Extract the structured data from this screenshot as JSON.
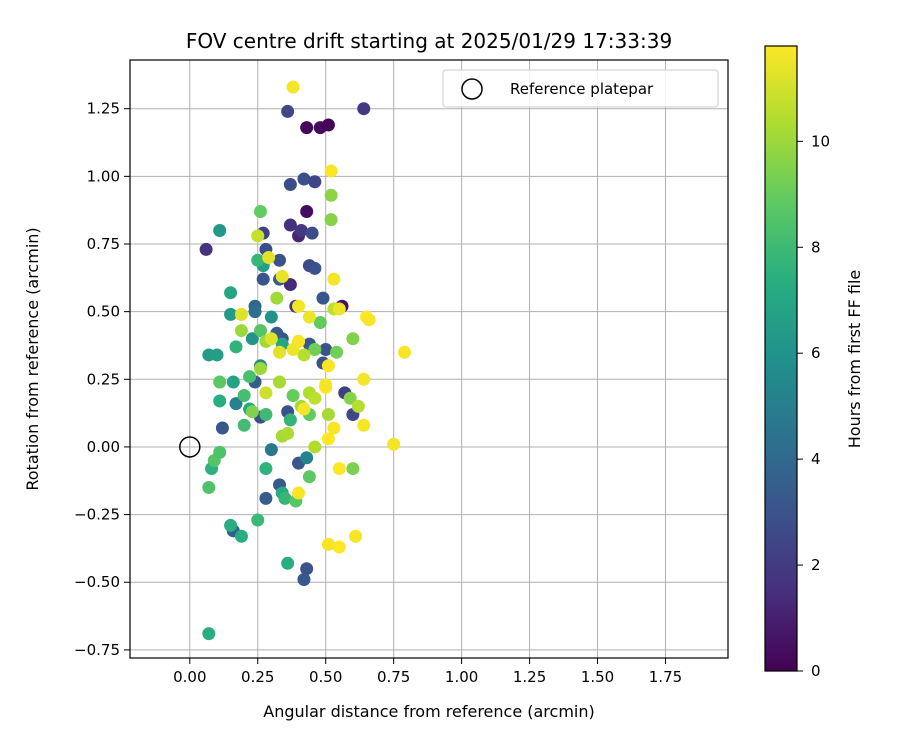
{
  "chart_data": {
    "type": "scatter",
    "title": "FOV centre drift starting at 2025/01/29 17:33:39",
    "xlabel": "Angular distance from reference (arcmin)",
    "ylabel": "Rotation from reference (arcmin)",
    "xlim": [
      -0.22,
      1.98
    ],
    "ylim": [
      -0.78,
      1.43
    ],
    "xticks": [
      0.0,
      0.25,
      0.5,
      0.75,
      1.0,
      1.25,
      1.5,
      1.75
    ],
    "xtick_labels": [
      "0.00",
      "0.25",
      "0.50",
      "0.75",
      "1.00",
      "1.25",
      "1.50",
      "1.75"
    ],
    "yticks": [
      -0.75,
      -0.5,
      -0.25,
      0.0,
      0.25,
      0.5,
      0.75,
      1.0,
      1.25
    ],
    "ytick_labels": [
      "−0.75",
      "−0.50",
      "−0.25",
      "0.00",
      "0.25",
      "0.50",
      "0.75",
      "1.00",
      "1.25"
    ],
    "grid": true,
    "legend": {
      "position": "upper right",
      "entries": [
        {
          "label": "Reference platepar",
          "marker": "open-circle"
        }
      ]
    },
    "reference_point": {
      "x": 0.0,
      "y": 0.0
    },
    "colorbar": {
      "label": "Hours from first FF file",
      "min": 0,
      "max": 11.8,
      "ticks": [
        0,
        2,
        4,
        6,
        8,
        10
      ],
      "tick_labels": [
        "0",
        "2",
        "4",
        "6",
        "8",
        "10"
      ],
      "colormap": "viridis"
    },
    "points": [
      {
        "x": 0.43,
        "y": 1.18,
        "h": 0.2
      },
      {
        "x": 0.48,
        "y": 1.18,
        "h": 0.3
      },
      {
        "x": 0.51,
        "y": 1.19,
        "h": 0.1
      },
      {
        "x": 0.43,
        "y": 0.87,
        "h": 0.4
      },
      {
        "x": 0.56,
        "y": 0.52,
        "h": 0.5
      },
      {
        "x": 0.4,
        "y": 0.78,
        "h": 1.2
      },
      {
        "x": 0.37,
        "y": 0.82,
        "h": 1.5
      },
      {
        "x": 0.37,
        "y": 0.6,
        "h": 1.3
      },
      {
        "x": 0.06,
        "y": 0.73,
        "h": 1.6
      },
      {
        "x": 0.64,
        "y": 1.25,
        "h": 1.9
      },
      {
        "x": 0.36,
        "y": 1.24,
        "h": 2.5
      },
      {
        "x": 0.37,
        "y": 0.97,
        "h": 2.8
      },
      {
        "x": 0.42,
        "y": 0.99,
        "h": 2.9
      },
      {
        "x": 0.46,
        "y": 0.98,
        "h": 2.4
      },
      {
        "x": 0.41,
        "y": 0.8,
        "h": 1.9
      },
      {
        "x": 0.45,
        "y": 0.79,
        "h": 2.7
      },
      {
        "x": 0.27,
        "y": 0.79,
        "h": 2.2
      },
      {
        "x": 0.28,
        "y": 0.73,
        "h": 2.8
      },
      {
        "x": 0.33,
        "y": 0.69,
        "h": 3.0
      },
      {
        "x": 0.44,
        "y": 0.67,
        "h": 2.6
      },
      {
        "x": 0.46,
        "y": 0.66,
        "h": 2.9
      },
      {
        "x": 0.27,
        "y": 0.62,
        "h": 3.1
      },
      {
        "x": 0.33,
        "y": 0.62,
        "h": 3.3
      },
      {
        "x": 0.49,
        "y": 0.55,
        "h": 3.2
      },
      {
        "x": 0.39,
        "y": 0.52,
        "h": 1.8
      },
      {
        "x": 0.34,
        "y": 0.4,
        "h": 3.0
      },
      {
        "x": 0.32,
        "y": 0.42,
        "h": 3.3
      },
      {
        "x": 0.44,
        "y": 0.38,
        "h": 3.2
      },
      {
        "x": 0.49,
        "y": 0.31,
        "h": 2.9
      },
      {
        "x": 0.5,
        "y": 0.36,
        "h": 3.0
      },
      {
        "x": 0.57,
        "y": 0.2,
        "h": 2.1
      },
      {
        "x": 0.6,
        "y": 0.12,
        "h": 2.5
      },
      {
        "x": 0.36,
        "y": 0.13,
        "h": 2.9
      },
      {
        "x": 0.26,
        "y": 0.11,
        "h": 2.8
      },
      {
        "x": 0.24,
        "y": 0.24,
        "h": 3.4
      },
      {
        "x": 0.12,
        "y": 0.07,
        "h": 3.2
      },
      {
        "x": 0.4,
        "y": -0.06,
        "h": 3.2
      },
      {
        "x": 0.33,
        "y": -0.14,
        "h": 3.3
      },
      {
        "x": 0.28,
        "y": -0.19,
        "h": 3.5
      },
      {
        "x": 0.43,
        "y": -0.45,
        "h": 3.0
      },
      {
        "x": 0.42,
        "y": -0.49,
        "h": 3.2
      },
      {
        "x": 0.16,
        "y": -0.31,
        "h": 3.6
      },
      {
        "x": 0.24,
        "y": 0.52,
        "h": 3.9
      },
      {
        "x": 0.24,
        "y": 0.5,
        "h": 4.3
      },
      {
        "x": 0.3,
        "y": -0.01,
        "h": 4.7
      },
      {
        "x": 0.43,
        "y": -0.04,
        "h": 5.2
      },
      {
        "x": 0.17,
        "y": 0.16,
        "h": 5.1
      },
      {
        "x": 0.26,
        "y": 0.3,
        "h": 5.5
      },
      {
        "x": 0.3,
        "y": 0.48,
        "h": 6.0
      },
      {
        "x": 0.23,
        "y": 0.4,
        "h": 6.1
      },
      {
        "x": 0.15,
        "y": 0.49,
        "h": 6.3
      },
      {
        "x": 0.11,
        "y": 0.8,
        "h": 6.2
      },
      {
        "x": 0.27,
        "y": 0.67,
        "h": 6.6
      },
      {
        "x": 0.07,
        "y": 0.34,
        "h": 6.4
      },
      {
        "x": 0.1,
        "y": 0.34,
        "h": 6.6
      },
      {
        "x": 0.16,
        "y": 0.24,
        "h": 6.8
      },
      {
        "x": 0.22,
        "y": 0.14,
        "h": 7.0
      },
      {
        "x": 0.15,
        "y": 0.57,
        "h": 6.9
      },
      {
        "x": 0.34,
        "y": 0.38,
        "h": 7.0
      },
      {
        "x": 0.34,
        "y": -0.17,
        "h": 7.2
      },
      {
        "x": 0.19,
        "y": -0.33,
        "h": 7.3
      },
      {
        "x": 0.15,
        "y": -0.29,
        "h": 7.4
      },
      {
        "x": 0.36,
        "y": -0.43,
        "h": 7.3
      },
      {
        "x": 0.07,
        "y": -0.69,
        "h": 7.3
      },
      {
        "x": 0.08,
        "y": -0.08,
        "h": 7.5
      },
      {
        "x": 0.11,
        "y": 0.17,
        "h": 7.4
      },
      {
        "x": 0.17,
        "y": 0.37,
        "h": 7.6
      },
      {
        "x": 0.25,
        "y": 0.69,
        "h": 7.8
      },
      {
        "x": 0.28,
        "y": -0.08,
        "h": 7.6
      },
      {
        "x": 0.35,
        "y": -0.19,
        "h": 7.8
      },
      {
        "x": 0.25,
        "y": -0.27,
        "h": 7.9
      },
      {
        "x": 0.37,
        "y": 0.1,
        "h": 7.7
      },
      {
        "x": 0.28,
        "y": 0.12,
        "h": 8.0
      },
      {
        "x": 0.2,
        "y": 0.08,
        "h": 8.1
      },
      {
        "x": 0.2,
        "y": 0.19,
        "h": 8.2
      },
      {
        "x": 0.22,
        "y": 0.26,
        "h": 8.3
      },
      {
        "x": 0.4,
        "y": 0.39,
        "h": 8.2
      },
      {
        "x": 0.07,
        "y": -0.15,
        "h": 8.4
      },
      {
        "x": 0.09,
        "y": -0.05,
        "h": 8.6
      },
      {
        "x": 0.11,
        "y": -0.02,
        "h": 8.4
      },
      {
        "x": 0.11,
        "y": 0.24,
        "h": 8.8
      },
      {
        "x": 0.26,
        "y": 0.43,
        "h": 8.6
      },
      {
        "x": 0.26,
        "y": 0.87,
        "h": 8.9
      },
      {
        "x": 0.39,
        "y": -0.2,
        "h": 8.7
      },
      {
        "x": 0.44,
        "y": -0.11,
        "h": 8.8
      },
      {
        "x": 0.44,
        "y": 0.12,
        "h": 8.9
      },
      {
        "x": 0.38,
        "y": 0.19,
        "h": 9.0
      },
      {
        "x": 0.54,
        "y": 0.35,
        "h": 9.2
      },
      {
        "x": 0.48,
        "y": 0.46,
        "h": 8.9
      },
      {
        "x": 0.46,
        "y": 0.36,
        "h": 9.2
      },
      {
        "x": 0.6,
        "y": -0.08,
        "h": 9.4
      },
      {
        "x": 0.6,
        "y": 0.4,
        "h": 9.5
      },
      {
        "x": 0.59,
        "y": 0.18,
        "h": 9.6
      },
      {
        "x": 0.52,
        "y": 0.93,
        "h": 9.7
      },
      {
        "x": 0.52,
        "y": 0.84,
        "h": 9.6
      },
      {
        "x": 0.23,
        "y": 0.13,
        "h": 9.5
      },
      {
        "x": 0.19,
        "y": 0.43,
        "h": 10.0
      },
      {
        "x": 0.28,
        "y": 0.39,
        "h": 10.1
      },
      {
        "x": 0.26,
        "y": 0.29,
        "h": 10.0
      },
      {
        "x": 0.32,
        "y": 0.55,
        "h": 10.1
      },
      {
        "x": 0.33,
        "y": 0.24,
        "h": 10.2
      },
      {
        "x": 0.34,
        "y": 0.04,
        "h": 10.2
      },
      {
        "x": 0.36,
        "y": 0.05,
        "h": 10.3
      },
      {
        "x": 0.41,
        "y": 0.15,
        "h": 10.2
      },
      {
        "x": 0.42,
        "y": 0.34,
        "h": 10.5
      },
      {
        "x": 0.44,
        "y": 0.2,
        "h": 10.4
      },
      {
        "x": 0.46,
        "y": 0.18,
        "h": 10.6
      },
      {
        "x": 0.46,
        "y": 0.0,
        "h": 10.4
      },
      {
        "x": 0.51,
        "y": 0.12,
        "h": 10.2
      },
      {
        "x": 0.53,
        "y": 0.51,
        "h": 10.6
      },
      {
        "x": 0.62,
        "y": 0.15,
        "h": 10.5
      },
      {
        "x": 0.25,
        "y": 0.78,
        "h": 10.8
      },
      {
        "x": 0.3,
        "y": 0.4,
        "h": 11.2
      },
      {
        "x": 0.28,
        "y": 0.2,
        "h": 10.9
      },
      {
        "x": 0.29,
        "y": 0.7,
        "h": 11.3
      },
      {
        "x": 0.34,
        "y": 0.63,
        "h": 11.4
      },
      {
        "x": 0.38,
        "y": 1.33,
        "h": 11.6
      },
      {
        "x": 0.19,
        "y": 0.49,
        "h": 11.2
      },
      {
        "x": 0.33,
        "y": 0.35,
        "h": 11.3
      },
      {
        "x": 0.38,
        "y": 0.36,
        "h": 11.5
      },
      {
        "x": 0.4,
        "y": 0.39,
        "h": 11.7
      },
      {
        "x": 0.4,
        "y": 0.52,
        "h": 11.6
      },
      {
        "x": 0.44,
        "y": 0.48,
        "h": 11.5
      },
      {
        "x": 0.42,
        "y": 0.14,
        "h": 11.6
      },
      {
        "x": 0.4,
        "y": -0.17,
        "h": 11.7
      },
      {
        "x": 0.52,
        "y": 1.02,
        "h": 11.7
      },
      {
        "x": 0.53,
        "y": 0.62,
        "h": 11.6
      },
      {
        "x": 0.51,
        "y": 0.3,
        "h": 11.7
      },
      {
        "x": 0.5,
        "y": 0.22,
        "h": 11.8
      },
      {
        "x": 0.5,
        "y": 0.23,
        "h": 11.6
      },
      {
        "x": 0.53,
        "y": 0.07,
        "h": 11.7
      },
      {
        "x": 0.51,
        "y": 0.03,
        "h": 11.8
      },
      {
        "x": 0.55,
        "y": 0.51,
        "h": 11.5
      },
      {
        "x": 0.55,
        "y": -0.08,
        "h": 11.8
      },
      {
        "x": 0.51,
        "y": -0.36,
        "h": 11.7
      },
      {
        "x": 0.55,
        "y": -0.37,
        "h": 11.8
      },
      {
        "x": 0.61,
        "y": -0.33,
        "h": 11.7
      },
      {
        "x": 0.64,
        "y": 0.25,
        "h": 11.6
      },
      {
        "x": 0.64,
        "y": 0.08,
        "h": 11.7
      },
      {
        "x": 0.65,
        "y": 0.48,
        "h": 11.8
      },
      {
        "x": 0.66,
        "y": 0.47,
        "h": 11.7
      },
      {
        "x": 0.75,
        "y": 0.01,
        "h": 11.6
      },
      {
        "x": 0.79,
        "y": 0.35,
        "h": 11.7
      }
    ]
  }
}
